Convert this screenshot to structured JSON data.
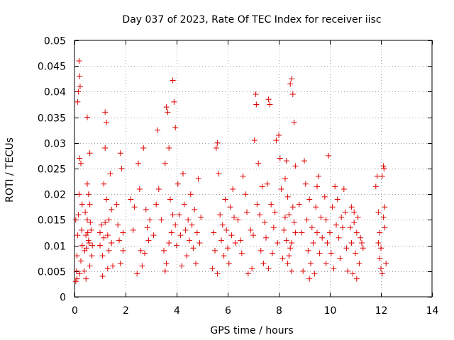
{
  "chart_data": {
    "type": "scatter",
    "title": "Day 037 of 2023, Rate Of TEC Index for receiver iisc",
    "xlabel": "GPS time / hours",
    "ylabel": "ROTI / TECUs",
    "xlim": [
      0,
      14
    ],
    "ylim": [
      0,
      0.05
    ],
    "xticks": [
      0,
      2,
      4,
      6,
      8,
      10,
      12,
      14
    ],
    "yticks": [
      0,
      0.005,
      0.01,
      0.015,
      0.02,
      0.025,
      0.03,
      0.035,
      0.04,
      0.045,
      0.05
    ],
    "xtick_labels": [
      "0",
      "2",
      "4",
      "6",
      "8",
      "10",
      "12",
      "14"
    ],
    "ytick_labels": [
      "0",
      "0.005",
      "0.01",
      "0.015",
      "0.02",
      "0.025",
      "0.03",
      "0.035",
      "0.04",
      "0.045",
      "0.05"
    ],
    "grid": true,
    "marker": "+",
    "color": "#e00000",
    "series": [
      {
        "name": "ROTI",
        "points": [
          [
            0.05,
            0.003
          ],
          [
            0.08,
            0.005
          ],
          [
            0.1,
            0.008
          ],
          [
            0.12,
            0.012
          ],
          [
            0.15,
            0.016
          ],
          [
            0.18,
            0.02
          ],
          [
            0.2,
            0.027
          ],
          [
            0.15,
            0.04
          ],
          [
            0.18,
            0.046
          ],
          [
            0.2,
            0.043
          ],
          [
            0.22,
            0.041
          ],
          [
            0.12,
            0.038
          ],
          [
            0.25,
            0.026
          ],
          [
            0.28,
            0.013
          ],
          [
            0.3,
            0.01
          ],
          [
            0.1,
            0.0035
          ],
          [
            0.2,
            0.0045
          ],
          [
            0.25,
            0.007
          ],
          [
            0.3,
            0.018
          ],
          [
            0.05,
            0.015
          ],
          [
            0.4,
            0.009
          ],
          [
            0.45,
            0.012
          ],
          [
            0.5,
            0.015
          ],
          [
            0.55,
            0.011
          ],
          [
            0.6,
            0.006
          ],
          [
            0.5,
            0.022
          ],
          [
            0.55,
            0.02
          ],
          [
            0.45,
            0.0035
          ],
          [
            0.6,
            0.018
          ],
          [
            0.65,
            0.013
          ],
          [
            0.7,
            0.01
          ],
          [
            0.5,
            0.035
          ],
          [
            0.6,
            0.028
          ],
          [
            0.42,
            0.0165
          ],
          [
            0.68,
            0.008
          ],
          [
            0.38,
            0.005
          ],
          [
            0.62,
            0.0145
          ],
          [
            0.52,
            0.0125
          ],
          [
            0.47,
            0.0095
          ],
          [
            0.57,
            0.0105
          ],
          [
            1.0,
            0.01
          ],
          [
            1.05,
            0.014
          ],
          [
            1.1,
            0.008
          ],
          [
            1.15,
            0.022
          ],
          [
            1.2,
            0.029
          ],
          [
            1.25,
            0.034
          ],
          [
            1.2,
            0.036
          ],
          [
            1.3,
            0.012
          ],
          [
            1.35,
            0.009
          ],
          [
            1.4,
            0.024
          ],
          [
            1.45,
            0.017
          ],
          [
            1.5,
            0.006
          ],
          [
            1.1,
            0.004
          ],
          [
            1.25,
            0.019
          ],
          [
            1.35,
            0.015
          ],
          [
            1.0,
            0.0125
          ],
          [
            1.15,
            0.0115
          ],
          [
            1.3,
            0.0055
          ],
          [
            1.45,
            0.0105
          ],
          [
            1.2,
            0.0145
          ],
          [
            1.7,
            0.014
          ],
          [
            1.75,
            0.011
          ],
          [
            1.8,
            0.028
          ],
          [
            1.85,
            0.025
          ],
          [
            1.9,
            0.009
          ],
          [
            1.65,
            0.018
          ],
          [
            1.8,
            0.0065
          ],
          [
            1.9,
            0.0125
          ],
          [
            2.2,
            0.019
          ],
          [
            2.3,
            0.013
          ],
          [
            2.5,
            0.026
          ],
          [
            2.55,
            0.021
          ],
          [
            2.6,
            0.009
          ],
          [
            2.65,
            0.006
          ],
          [
            2.7,
            0.029
          ],
          [
            2.8,
            0.017
          ],
          [
            2.9,
            0.011
          ],
          [
            2.95,
            0.015
          ],
          [
            2.45,
            0.0045
          ],
          [
            2.75,
            0.0085
          ],
          [
            2.35,
            0.0175
          ],
          [
            2.85,
            0.0135
          ],
          [
            3.1,
            0.012
          ],
          [
            3.2,
            0.018
          ],
          [
            3.25,
            0.0325
          ],
          [
            3.3,
            0.021
          ],
          [
            3.4,
            0.015
          ],
          [
            3.5,
            0.009
          ],
          [
            3.55,
            0.026
          ],
          [
            3.6,
            0.037
          ],
          [
            3.65,
            0.036
          ],
          [
            3.7,
            0.029
          ],
          [
            3.75,
            0.019
          ],
          [
            3.8,
            0.0125
          ],
          [
            3.85,
            0.0422
          ],
          [
            3.9,
            0.038
          ],
          [
            3.95,
            0.033
          ],
          [
            3.55,
            0.005
          ],
          [
            3.6,
            0.0065
          ],
          [
            3.85,
            0.016
          ],
          [
            3.7,
            0.0105
          ],
          [
            3.95,
            0.014
          ],
          [
            4.0,
            0.01
          ],
          [
            4.05,
            0.022
          ],
          [
            4.1,
            0.016
          ],
          [
            4.15,
            0.012
          ],
          [
            4.2,
            0.006
          ],
          [
            4.25,
            0.024
          ],
          [
            4.3,
            0.018
          ],
          [
            4.35,
            0.013
          ],
          [
            4.4,
            0.008
          ],
          [
            4.45,
            0.015
          ],
          [
            4.5,
            0.011
          ],
          [
            4.55,
            0.02
          ],
          [
            4.6,
            0.014
          ],
          [
            4.65,
            0.0095
          ],
          [
            4.7,
            0.017
          ],
          [
            4.75,
            0.0065
          ],
          [
            4.8,
            0.0125
          ],
          [
            4.85,
            0.023
          ],
          [
            4.9,
            0.0105
          ],
          [
            4.95,
            0.0155
          ],
          [
            5.4,
            0.0055
          ],
          [
            5.5,
            0.009
          ],
          [
            5.55,
            0.029
          ],
          [
            5.6,
            0.03
          ],
          [
            5.65,
            0.024
          ],
          [
            5.7,
            0.016
          ],
          [
            5.75,
            0.011
          ],
          [
            5.8,
            0.014
          ],
          [
            5.85,
            0.008
          ],
          [
            5.9,
            0.019
          ],
          [
            5.95,
            0.013
          ],
          [
            6.0,
            0.0095
          ],
          [
            6.05,
            0.0065
          ],
          [
            6.1,
            0.0175
          ],
          [
            6.15,
            0.012
          ],
          [
            6.2,
            0.021
          ],
          [
            6.25,
            0.0155
          ],
          [
            5.45,
            0.0125
          ],
          [
            6.3,
            0.0105
          ],
          [
            5.6,
            0.0045
          ],
          [
            6.4,
            0.015
          ],
          [
            6.5,
            0.011
          ],
          [
            6.6,
            0.0235
          ],
          [
            6.7,
            0.02
          ],
          [
            6.8,
            0.0045
          ],
          [
            6.9,
            0.013
          ],
          [
            7.0,
            0.012
          ],
          [
            7.05,
            0.0305
          ],
          [
            7.1,
            0.0395
          ],
          [
            7.12,
            0.0375
          ],
          [
            7.15,
            0.018
          ],
          [
            7.2,
            0.026
          ],
          [
            7.25,
            0.016
          ],
          [
            7.3,
            0.009
          ],
          [
            7.35,
            0.0215
          ],
          [
            7.4,
            0.0065
          ],
          [
            7.45,
            0.0145
          ],
          [
            6.55,
            0.0085
          ],
          [
            6.75,
            0.0165
          ],
          [
            6.95,
            0.0055
          ],
          [
            7.5,
            0.0115
          ],
          [
            7.55,
            0.022
          ],
          [
            7.6,
            0.0385
          ],
          [
            7.65,
            0.0375
          ],
          [
            7.7,
            0.018
          ],
          [
            7.75,
            0.0085
          ],
          [
            7.8,
            0.0135
          ],
          [
            7.9,
            0.0305
          ],
          [
            8.0,
            0.0315
          ],
          [
            8.05,
            0.027
          ],
          [
            8.1,
            0.021
          ],
          [
            7.85,
            0.0165
          ],
          [
            7.95,
            0.0105
          ],
          [
            7.6,
            0.0055
          ],
          [
            8.15,
            0.0075
          ],
          [
            8.2,
            0.013
          ],
          [
            8.25,
            0.023
          ],
          [
            8.3,
            0.0265
          ],
          [
            8.35,
            0.0195
          ],
          [
            8.4,
            0.016
          ],
          [
            8.45,
            0.0415
          ],
          [
            8.5,
            0.0425
          ],
          [
            8.55,
            0.0395
          ],
          [
            8.6,
            0.034
          ],
          [
            8.65,
            0.0255
          ],
          [
            8.4,
            0.008
          ],
          [
            8.5,
            0.005
          ],
          [
            8.3,
            0.011
          ],
          [
            8.6,
            0.0145
          ],
          [
            8.45,
            0.0095
          ],
          [
            8.55,
            0.0175
          ],
          [
            8.35,
            0.0065
          ],
          [
            8.65,
            0.0125
          ],
          [
            8.25,
            0.0155
          ],
          [
            8.5,
            0.0105
          ],
          [
            8.8,
            0.018
          ],
          [
            8.9,
            0.0125
          ],
          [
            9.0,
            0.0265
          ],
          [
            9.05,
            0.022
          ],
          [
            9.1,
            0.015
          ],
          [
            9.15,
            0.009
          ],
          [
            9.2,
            0.019
          ],
          [
            9.25,
            0.0065
          ],
          [
            9.3,
            0.0135
          ],
          [
            9.35,
            0.0105
          ],
          [
            9.4,
            0.0045
          ],
          [
            9.45,
            0.0175
          ],
          [
            9.5,
            0.0215
          ],
          [
            9.55,
            0.0235
          ],
          [
            9.6,
            0.0085
          ],
          [
            9.65,
            0.0155
          ],
          [
            9.7,
            0.0115
          ],
          [
            8.95,
            0.005
          ],
          [
            9.2,
            0.0035
          ],
          [
            9.5,
            0.0125
          ],
          [
            9.8,
            0.0195
          ],
          [
            9.85,
            0.015
          ],
          [
            9.9,
            0.0105
          ],
          [
            9.95,
            0.0275
          ],
          [
            10.0,
            0.0125
          ],
          [
            10.05,
            0.0085
          ],
          [
            10.1,
            0.0175
          ],
          [
            10.15,
            0.0055
          ],
          [
            10.2,
            0.0215
          ],
          [
            10.25,
            0.014
          ],
          [
            10.3,
            0.019
          ],
          [
            10.35,
            0.0115
          ],
          [
            10.4,
            0.0075
          ],
          [
            10.5,
            0.0135
          ],
          [
            10.55,
            0.021
          ],
          [
            10.6,
            0.0165
          ],
          [
            10.65,
            0.0095
          ],
          [
            10.7,
            0.005
          ],
          [
            9.85,
            0.0065
          ],
          [
            10.45,
            0.0155
          ],
          [
            10.8,
            0.0135
          ],
          [
            10.85,
            0.0105
          ],
          [
            10.9,
            0.0045
          ],
          [
            10.95,
            0.0165
          ],
          [
            11.0,
            0.0085
          ],
          [
            11.05,
            0.0125
          ],
          [
            11.1,
            0.0155
          ],
          [
            11.15,
            0.0065
          ],
          [
            11.2,
            0.0115
          ],
          [
            11.3,
            0.0095
          ],
          [
            10.85,
            0.0175
          ],
          [
            11.05,
            0.0035
          ],
          [
            10.95,
            0.0145
          ],
          [
            11.25,
            0.0105
          ],
          [
            11.8,
            0.0215
          ],
          [
            11.85,
            0.0235
          ],
          [
            11.9,
            0.0165
          ],
          [
            11.95,
            0.0125
          ],
          [
            12.0,
            0.0095
          ],
          [
            12.05,
            0.0235
          ],
          [
            12.1,
            0.0255
          ],
          [
            12.12,
            0.025
          ],
          [
            12.15,
            0.0175
          ],
          [
            12.2,
            0.0065
          ],
          [
            11.9,
            0.0105
          ],
          [
            12.05,
            0.0045
          ],
          [
            12.15,
            0.0135
          ],
          [
            11.95,
            0.0075
          ],
          [
            12.1,
            0.0155
          ],
          [
            12.0,
            0.0055
          ]
        ]
      }
    ]
  }
}
